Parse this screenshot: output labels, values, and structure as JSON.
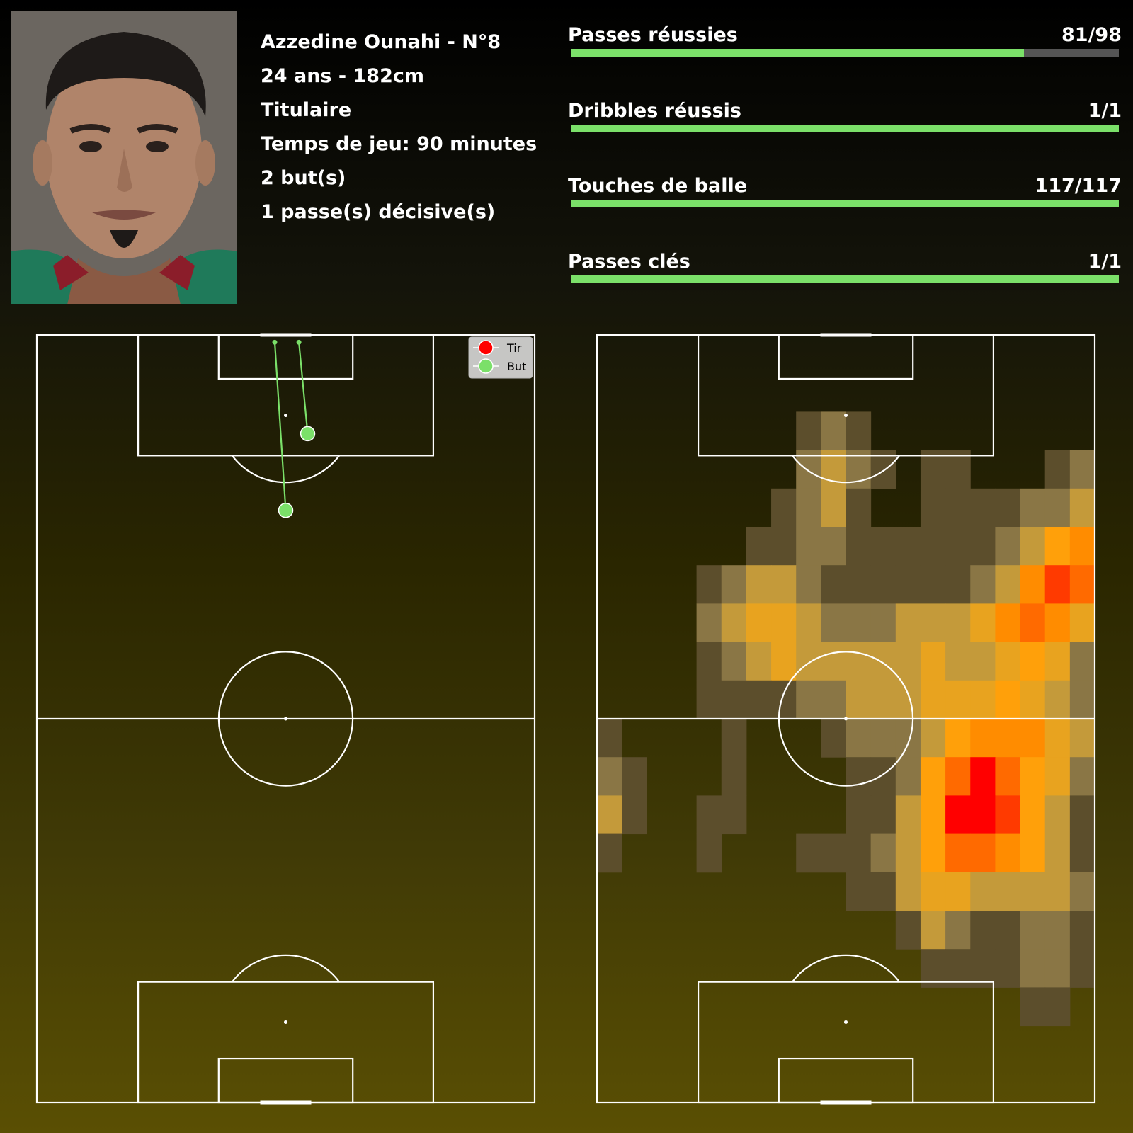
{
  "player": {
    "name_line": "Azzedine Ounahi - N°8",
    "age_height": "24 ans - 182cm",
    "status": "Titulaire",
    "playing_time": "Temps de jeu: 90 minutes",
    "goals": "2 but(s)",
    "assists": "1 passe(s) décisive(s)"
  },
  "stats": [
    {
      "label": "Passes réussies",
      "value": "81/98",
      "success": 81,
      "total": 98
    },
    {
      "label": "Dribbles réussis",
      "value": "1/1",
      "success": 1,
      "total": 1
    },
    {
      "label": "Touches de balle",
      "value": "117/117",
      "success": 117,
      "total": 117
    },
    {
      "label": "Passes clés",
      "value": "1/1",
      "success": 1,
      "total": 1
    }
  ],
  "colors": {
    "bar_fill": "#7be069",
    "bar_track": "#555555",
    "goal": "#7be069",
    "shot": "#ff0000",
    "pitch_lines": "#ffffff"
  },
  "chart_data": [
    {
      "type": "scatter",
      "legend": {
        "position": "top-right",
        "entries": [
          {
            "label": "Tir",
            "color": "#ff0000"
          },
          {
            "label": "But",
            "color": "#7be069"
          }
        ]
      },
      "shots": [
        {
          "result": "But",
          "x": 13.5,
          "y": 37.0,
          "end_x": 1.0,
          "end_y": 35.8
        },
        {
          "result": "But",
          "x": 24.0,
          "y": 34.0,
          "end_x": 1.0,
          "end_y": 32.5
        }
      ]
    },
    {
      "type": "heatmap",
      "rows": 20,
      "cols": 20,
      "cells": [
        [
          0,
          0,
          0,
          0,
          0,
          0,
          0,
          0,
          0,
          0,
          0,
          0,
          0,
          0,
          0,
          0,
          0,
          0,
          0,
          0
        ],
        [
          0,
          0,
          0,
          0,
          0,
          0,
          0,
          0,
          0,
          0,
          0,
          0,
          0,
          0,
          0,
          0,
          0,
          0,
          0,
          0
        ],
        [
          0,
          0,
          0,
          0,
          0,
          0,
          0,
          0,
          1,
          2,
          1,
          0,
          0,
          0,
          0,
          0,
          0,
          0,
          0,
          0
        ],
        [
          0,
          0,
          0,
          0,
          0,
          0,
          0,
          0,
          2,
          3,
          2,
          1,
          0,
          1,
          1,
          0,
          0,
          0,
          1,
          2
        ],
        [
          0,
          0,
          0,
          0,
          0,
          0,
          0,
          1,
          2,
          3,
          1,
          0,
          0,
          1,
          1,
          1,
          1,
          2,
          2,
          3
        ],
        [
          0,
          0,
          0,
          0,
          0,
          0,
          1,
          1,
          2,
          2,
          1,
          1,
          1,
          1,
          1,
          1,
          2,
          3,
          5,
          6
        ],
        [
          0,
          0,
          0,
          0,
          1,
          2,
          3,
          3,
          2,
          1,
          1,
          1,
          1,
          1,
          1,
          2,
          3,
          6,
          8,
          7
        ],
        [
          0,
          0,
          0,
          0,
          2,
          3,
          4,
          4,
          3,
          2,
          2,
          2,
          3,
          3,
          3,
          4,
          6,
          7,
          6,
          4
        ],
        [
          0,
          0,
          0,
          0,
          1,
          2,
          3,
          4,
          3,
          3,
          3,
          3,
          3,
          4,
          3,
          3,
          4,
          5,
          4,
          2
        ],
        [
          0,
          0,
          0,
          0,
          1,
          1,
          1,
          1,
          2,
          2,
          3,
          3,
          3,
          4,
          4,
          4,
          5,
          4,
          3,
          2
        ],
        [
          1,
          0,
          0,
          0,
          0,
          1,
          0,
          0,
          0,
          1,
          2,
          2,
          2,
          3,
          5,
          6,
          6,
          6,
          4,
          3
        ],
        [
          2,
          1,
          0,
          0,
          0,
          1,
          0,
          0,
          0,
          0,
          1,
          1,
          2,
          5,
          7,
          9,
          7,
          5,
          4,
          2
        ],
        [
          3,
          1,
          0,
          0,
          1,
          1,
          0,
          0,
          0,
          0,
          1,
          1,
          3,
          5,
          9,
          9,
          8,
          5,
          3,
          1
        ],
        [
          1,
          0,
          0,
          0,
          1,
          0,
          0,
          0,
          1,
          1,
          1,
          2,
          3,
          5,
          7,
          7,
          6,
          5,
          3,
          1
        ],
        [
          0,
          0,
          0,
          0,
          0,
          0,
          0,
          0,
          0,
          0,
          1,
          1,
          3,
          4,
          4,
          3,
          3,
          3,
          3,
          2
        ],
        [
          0,
          0,
          0,
          0,
          0,
          0,
          0,
          0,
          0,
          0,
          0,
          0,
          1,
          3,
          2,
          1,
          1,
          2,
          2,
          1
        ],
        [
          0,
          0,
          0,
          0,
          0,
          0,
          0,
          0,
          0,
          0,
          0,
          0,
          0,
          1,
          1,
          1,
          1,
          2,
          2,
          1
        ],
        [
          0,
          0,
          0,
          0,
          0,
          0,
          0,
          0,
          0,
          0,
          0,
          0,
          0,
          0,
          0,
          0,
          0,
          1,
          1,
          0
        ],
        [
          0,
          0,
          0,
          0,
          0,
          0,
          0,
          0,
          0,
          0,
          0,
          0,
          0,
          0,
          0,
          0,
          0,
          0,
          0,
          0
        ],
        [
          0,
          0,
          0,
          0,
          0,
          0,
          0,
          0,
          0,
          0,
          0,
          0,
          0,
          0,
          0,
          0,
          0,
          0,
          0,
          0
        ]
      ]
    }
  ]
}
